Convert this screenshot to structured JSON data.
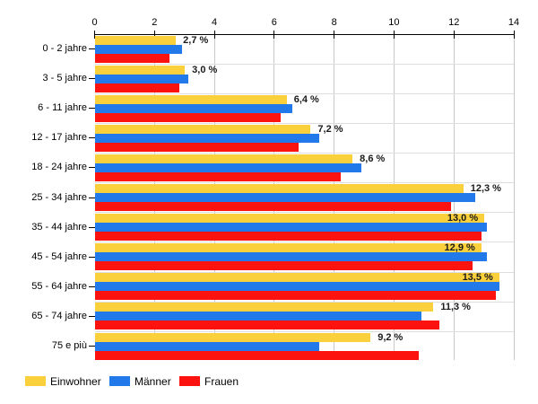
{
  "chart_data": {
    "type": "bar",
    "orientation": "horizontal",
    "title": "",
    "categories": [
      "0 - 2 jahre",
      "3 - 5 jahre",
      "6 - 11 jahre",
      "12 - 17 jahre",
      "18 - 24 jahre",
      "25 - 34 jahre",
      "35 - 44 jahre",
      "45 - 54 jahre",
      "55 - 64 jahre",
      "65 - 74 jahre",
      "75 e più"
    ],
    "series": [
      {
        "name": "Einwohner",
        "color": "#FAD13C",
        "values": [
          2.7,
          3.0,
          6.4,
          7.2,
          8.6,
          12.3,
          13.0,
          12.9,
          13.5,
          11.3,
          9.2
        ]
      },
      {
        "name": "Männer",
        "color": "#2279EA",
        "values": [
          2.9,
          3.1,
          6.6,
          7.5,
          8.9,
          12.7,
          13.1,
          13.1,
          13.5,
          10.9,
          7.5
        ]
      },
      {
        "name": "Frauen",
        "color": "#FC1310",
        "values": [
          2.5,
          2.8,
          6.2,
          6.8,
          8.2,
          11.9,
          12.9,
          12.6,
          13.4,
          11.5,
          10.8
        ]
      }
    ],
    "data_labels": {
      "on_series": "Einwohner",
      "values": [
        "2,7 %",
        "3,0 %",
        "6,4 %",
        "7,2 %",
        "8,6 %",
        "12,3 %",
        "13,0 %",
        "12,9 %",
        "13,5 %",
        "11,3 %",
        "9,2 %"
      ]
    },
    "xlabel": "",
    "ylabel": "",
    "xlim": [
      0,
      14
    ],
    "x_ticks": [
      "0",
      "2",
      "4",
      "6",
      "8",
      "10",
      "12",
      "14"
    ],
    "grid": true,
    "axis_position": "top",
    "legend_position": "bottom"
  },
  "legend": {
    "items": [
      {
        "label": "Einwohner",
        "color": "#FAD13C"
      },
      {
        "label": "Männer",
        "color": "#2279EA"
      },
      {
        "label": "Frauen",
        "color": "#FC1310"
      }
    ]
  }
}
